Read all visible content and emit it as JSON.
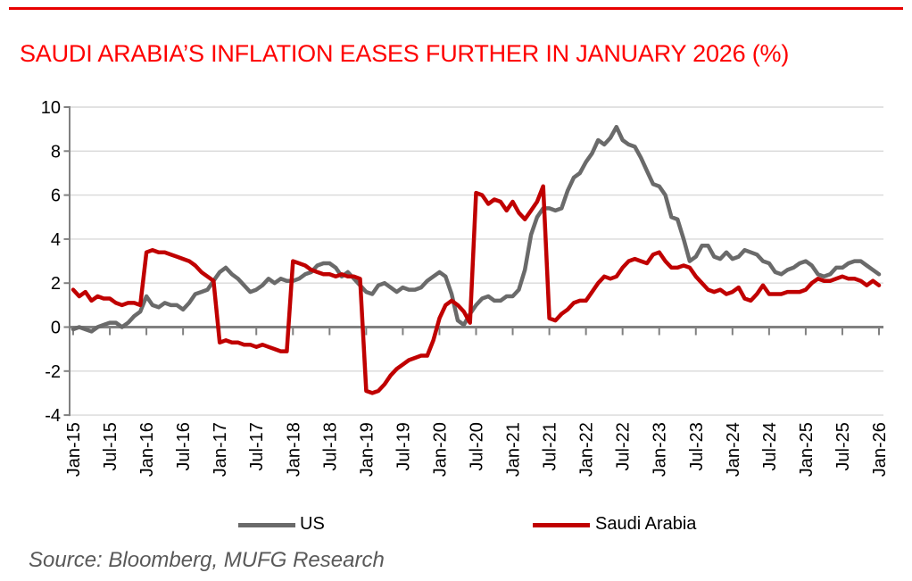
{
  "page": {
    "source": "Source: Bloomberg, MUFG Research"
  },
  "colors": {
    "rule_red": "#e80000",
    "title_red": "#fe0000",
    "source_gray": "#595959",
    "us_line": "#6a6a6a",
    "saudi_line": "#c00000",
    "grid": "#d9d9d9",
    "axis": "#808080",
    "label": "#000000"
  },
  "chart_data": {
    "type": "line",
    "title": "SAUDI ARABIA’S INFLATION EASES FURTHER IN JANUARY 2026 (%)",
    "xlabel": "",
    "ylabel": "",
    "ylim": [
      -4,
      10
    ],
    "y_ticks": [
      -4,
      -2,
      0,
      2,
      4,
      6,
      8,
      10
    ],
    "grid": "horizontal",
    "legend_position": "bottom",
    "x_frequency": "monthly",
    "x_start": "Jan-15",
    "x_end": "Jan-26",
    "x_tick_labels": [
      "Jan-15",
      "Jul-15",
      "Jan-16",
      "Jul-16",
      "Jan-17",
      "Jul-17",
      "Jan-18",
      "Jul-18",
      "Jan-19",
      "Jul-19",
      "Jan-20",
      "Jul-20",
      "Jan-21",
      "Jul-21",
      "Jan-22",
      "Jul-22",
      "Jan-23",
      "Jul-23",
      "Jan-24",
      "Jul-24",
      "Jan-25",
      "Jul-25",
      "Jan-26"
    ],
    "x_tick_interval_months": 6,
    "series": [
      {
        "name": "US",
        "color": "#6a6a6a",
        "values": [
          -0.1,
          0.0,
          -0.1,
          -0.2,
          0.0,
          0.1,
          0.2,
          0.2,
          0.0,
          0.2,
          0.5,
          0.7,
          1.4,
          1.0,
          0.9,
          1.1,
          1.0,
          1.0,
          0.8,
          1.1,
          1.5,
          1.6,
          1.7,
          2.1,
          2.5,
          2.7,
          2.4,
          2.2,
          1.9,
          1.6,
          1.7,
          1.9,
          2.2,
          2.0,
          2.2,
          2.1,
          2.1,
          2.2,
          2.4,
          2.5,
          2.8,
          2.9,
          2.9,
          2.7,
          2.3,
          2.5,
          2.2,
          1.9,
          1.6,
          1.5,
          1.9,
          2.0,
          1.8,
          1.6,
          1.8,
          1.7,
          1.7,
          1.8,
          2.1,
          2.3,
          2.5,
          2.3,
          1.5,
          0.3,
          0.1,
          0.6,
          1.0,
          1.3,
          1.4,
          1.2,
          1.2,
          1.4,
          1.4,
          1.7,
          2.6,
          4.2,
          5.0,
          5.4,
          5.4,
          5.3,
          5.4,
          6.2,
          6.8,
          7.0,
          7.5,
          7.9,
          8.5,
          8.3,
          8.6,
          9.1,
          8.5,
          8.3,
          8.2,
          7.7,
          7.1,
          6.5,
          6.4,
          6.0,
          5.0,
          4.9,
          4.0,
          3.0,
          3.2,
          3.7,
          3.7,
          3.2,
          3.1,
          3.4,
          3.1,
          3.2,
          3.5,
          3.4,
          3.3,
          3.0,
          2.9,
          2.5,
          2.4,
          2.6,
          2.7,
          2.9,
          3.0,
          2.8,
          2.4,
          2.3,
          2.4,
          2.7,
          2.7,
          2.9,
          3.0,
          3.0,
          2.8,
          2.6,
          2.4
        ]
      },
      {
        "name": "Saudi Arabia",
        "color": "#c00000",
        "values": [
          1.7,
          1.4,
          1.6,
          1.2,
          1.4,
          1.3,
          1.3,
          1.1,
          1.0,
          1.1,
          1.1,
          1.0,
          3.4,
          3.5,
          3.4,
          3.4,
          3.3,
          3.2,
          3.1,
          3.0,
          2.8,
          2.5,
          2.3,
          2.1,
          -0.7,
          -0.6,
          -0.7,
          -0.7,
          -0.8,
          -0.8,
          -0.9,
          -0.8,
          -0.9,
          -1.0,
          -1.1,
          -1.1,
          3.0,
          2.9,
          2.8,
          2.6,
          2.5,
          2.4,
          2.4,
          2.3,
          2.4,
          2.3,
          2.3,
          2.2,
          -2.9,
          -3.0,
          -2.9,
          -2.6,
          -2.2,
          -1.9,
          -1.7,
          -1.5,
          -1.4,
          -1.3,
          -1.3,
          -0.6,
          0.4,
          1.0,
          1.2,
          1.0,
          0.7,
          0.2,
          6.1,
          6.0,
          5.6,
          5.8,
          5.7,
          5.3,
          5.7,
          5.2,
          4.9,
          5.3,
          5.7,
          6.4,
          0.4,
          0.3,
          0.6,
          0.8,
          1.1,
          1.2,
          1.2,
          1.6,
          2.0,
          2.3,
          2.2,
          2.3,
          2.7,
          3.0,
          3.1,
          3.0,
          2.9,
          3.3,
          3.4,
          3.0,
          2.7,
          2.7,
          2.8,
          2.7,
          2.3,
          2.0,
          1.7,
          1.6,
          1.7,
          1.5,
          1.6,
          1.8,
          1.3,
          1.2,
          1.5,
          1.9,
          1.5,
          1.5,
          1.5,
          1.6,
          1.6,
          1.6,
          1.7,
          2.0,
          2.2,
          2.1,
          2.1,
          2.2,
          2.3,
          2.2,
          2.2,
          2.1,
          1.9,
          2.1,
          1.9
        ]
      }
    ]
  }
}
